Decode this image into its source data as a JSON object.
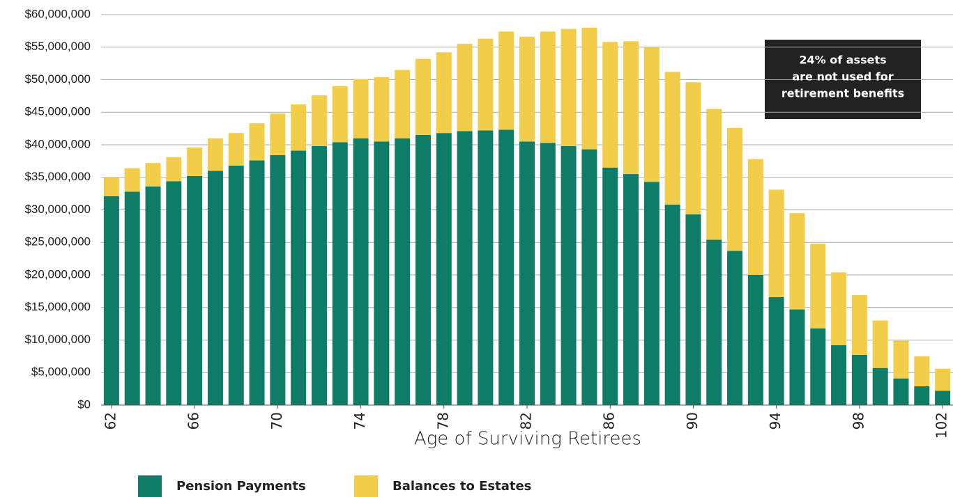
{
  "chart_data": {
    "type": "stacked_bar",
    "x_label": "Age of Surviving Retirees",
    "annotation": [
      "24% of assets",
      "are not used for",
      "retirement benefits"
    ],
    "categories": [
      "62",
      null,
      null,
      null,
      "66",
      null,
      null,
      null,
      "70",
      null,
      null,
      null,
      "74",
      null,
      null,
      null,
      "78",
      null,
      null,
      null,
      "82",
      null,
      null,
      null,
      "86",
      null,
      null,
      null,
      "90",
      null,
      null,
      null,
      "94",
      null,
      null,
      null,
      "98",
      null,
      null,
      null,
      "102"
    ],
    "series": [
      {
        "name": "Pension Payments",
        "color": "#0e7c66",
        "values": [
          32100000,
          32800000,
          33600000,
          34400000,
          35200000,
          36000000,
          36800000,
          37600000,
          38400000,
          39100000,
          39800000,
          40400000,
          41000000,
          40500000,
          41000000,
          41500000,
          41800000,
          42100000,
          42200000,
          42300000,
          40500000,
          40300000,
          39800000,
          39300000,
          36500000,
          35500000,
          34300000,
          30800000,
          29300000,
          25400000,
          23700000,
          20000000,
          16600000,
          14700000,
          11800000,
          9200000,
          7700000,
          5700000,
          4100000,
          2900000,
          2200000
        ]
      },
      {
        "name": "Balances to Estates",
        "color": "#f2cd4a",
        "values": [
          2900000,
          3600000,
          3600000,
          3700000,
          4400000,
          5000000,
          5000000,
          5700000,
          6400000,
          7100000,
          7800000,
          8600000,
          9100000,
          9900000,
          10500000,
          11700000,
          12400000,
          13400000,
          14100000,
          15100000,
          16100000,
          17100000,
          18000000,
          18700000,
          19300000,
          20400000,
          20700000,
          20400000,
          20300000,
          20100000,
          18900000,
          17800000,
          16500000,
          14800000,
          13000000,
          11200000,
          9200000,
          7300000,
          5800000,
          4600000,
          3400000
        ]
      }
    ],
    "ylim": [
      0,
      60000000
    ],
    "yticks": [
      {
        "value": 0,
        "label": "$0"
      },
      {
        "value": 5000000,
        "label": "$5,000,000"
      },
      {
        "value": 10000000,
        "label": "$10,000,000"
      },
      {
        "value": 15000000,
        "label": "$15,000,000"
      },
      {
        "value": 20000000,
        "label": "$20,000,000"
      },
      {
        "value": 25000000,
        "label": "$25,000,000"
      },
      {
        "value": 30000000,
        "label": "$30,000,000"
      },
      {
        "value": 35000000,
        "label": "$35,000,000"
      },
      {
        "value": 40000000,
        "label": "$40,000,000"
      },
      {
        "value": 45000000,
        "label": "$45,000,000"
      },
      {
        "value": 50000000,
        "label": "$50,000,000"
      },
      {
        "value": 55000000,
        "label": "$55,000,000"
      },
      {
        "value": 60000000,
        "label": "$60,000,000"
      }
    ],
    "grid": true
  }
}
